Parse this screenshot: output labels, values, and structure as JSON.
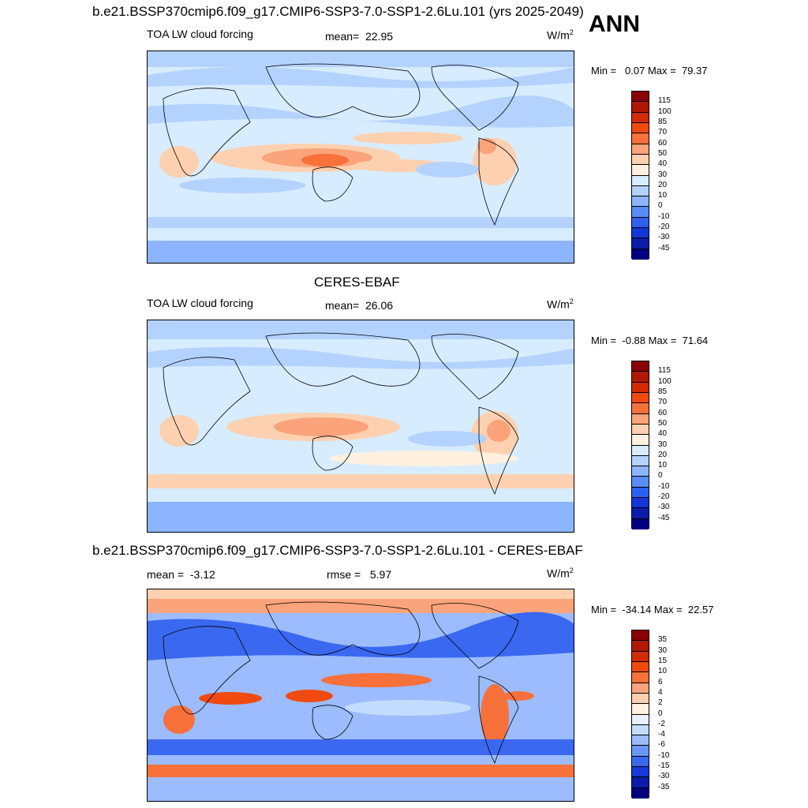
{
  "header": {
    "title_top": "b.e21.BSSP370cmip6.f09_g17.CMIP6-SSP3-7.0-SSP1-2.6Lu.101 (yrs 2025-2049)",
    "season": "ANN"
  },
  "panel1": {
    "variable": "TOA LW cloud forcing",
    "mean_label": "mean=",
    "mean_value": "22.95",
    "units": "W/m",
    "units_sup": "2",
    "min_label": "Min =",
    "min_value": "0.07",
    "max_label": "Max =",
    "max_value": "79.37"
  },
  "panel2": {
    "title": "CERES-EBAF",
    "variable": "TOA LW cloud forcing",
    "mean_label": "mean=",
    "mean_value": "26.06",
    "units": "W/m",
    "units_sup": "2",
    "min_label": "Min =",
    "min_value": "-0.88",
    "max_label": "Max =",
    "max_value": "71.64"
  },
  "panel3": {
    "title": "b.e21.BSSP370cmip6.f09_g17.CMIP6-SSP3-7.0-SSP1-2.6Lu.101 - CERES-EBAF",
    "mean_label": "mean =",
    "mean_value": "-3.12",
    "rmse_label": "rmse =",
    "rmse_value": "5.97",
    "units": "W/m",
    "units_sup": "2",
    "min_label": "Min =",
    "min_value": "-34.14",
    "max_label": "Max =",
    "max_value": "22.57"
  },
  "colorbar_abs": {
    "labels": [
      "115",
      "100",
      "85",
      "70",
      "60",
      "50",
      "40",
      "30",
      "20",
      "10",
      "0",
      "-10",
      "-20",
      "-30",
      "-45"
    ],
    "colors": [
      "#8b0000",
      "#b01800",
      "#d42a00",
      "#f04a10",
      "#f8703a",
      "#fba37a",
      "#fdd0b0",
      "#fff0e0",
      "#d8ecff",
      "#b4d2ff",
      "#8cb4ff",
      "#5a8cf8",
      "#2e60f0",
      "#1435d8",
      "#0a1ca8",
      "#000080"
    ]
  },
  "colorbar_diff": {
    "labels": [
      "35",
      "30",
      "15",
      "10",
      "6",
      "4",
      "2",
      "0",
      "-2",
      "-4",
      "-6",
      "-10",
      "-15",
      "-30",
      "-35"
    ],
    "colors": [
      "#8b0000",
      "#b01800",
      "#d42a00",
      "#f04a10",
      "#f8703a",
      "#fba37a",
      "#fdd0b0",
      "#fff0e0",
      "#e8f2ff",
      "#c4dcff",
      "#9cbcff",
      "#6a96f8",
      "#3a68f0",
      "#1838d8",
      "#0a1ca8",
      "#000080"
    ]
  }
}
